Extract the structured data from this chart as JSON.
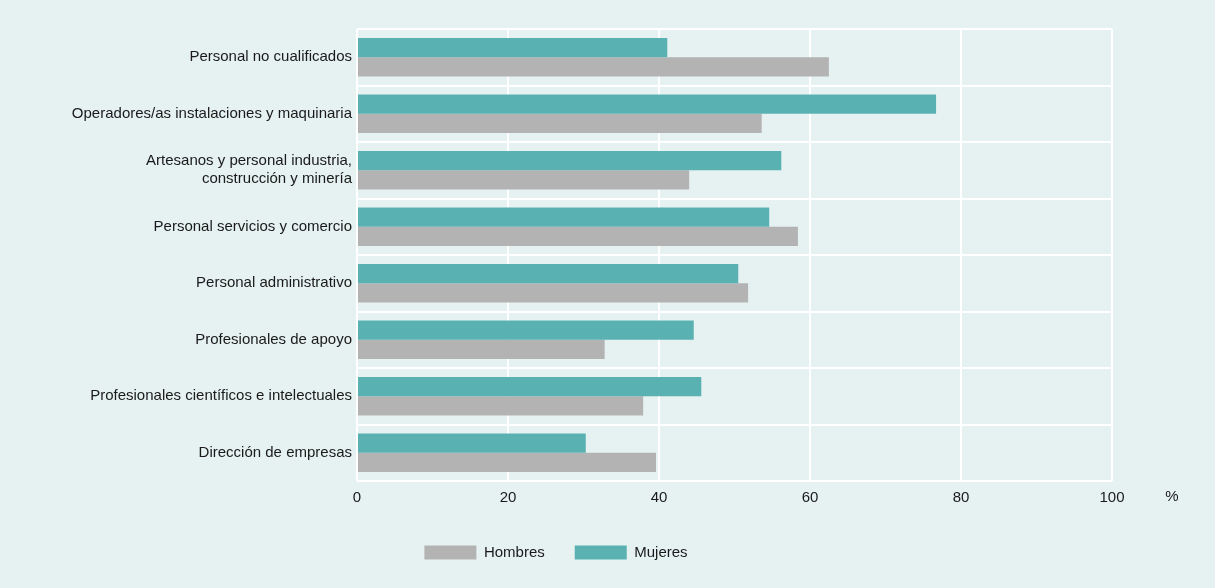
{
  "chart_data": {
    "type": "bar",
    "orientation": "horizontal",
    "xlabel": "%",
    "categories": [
      "Personal no cualificados",
      "Operadores/as instalaciones y maquinaria",
      "Artesanos y personal industria,\nconstrucción y minería",
      "Personal servicios y comercio",
      "Personal administrativo",
      "Profesionales de apoyo",
      "Profesionales científicos e intelectuales",
      "Dirección de empresas"
    ],
    "series": [
      {
        "name": "Hombres",
        "color": "#b3b3b3",
        "values": [
          62.5,
          53.6,
          44.0,
          58.4,
          51.8,
          32.8,
          37.9,
          39.6
        ]
      },
      {
        "name": "Mujeres",
        "color": "#5ab1b2",
        "values": [
          41.1,
          76.7,
          56.2,
          54.6,
          50.5,
          44.6,
          45.6,
          30.3
        ]
      }
    ],
    "xlim": [
      0,
      100
    ],
    "xticks": [
      0,
      20,
      40,
      60,
      80,
      100
    ],
    "grid": true,
    "legend": "bottom"
  }
}
